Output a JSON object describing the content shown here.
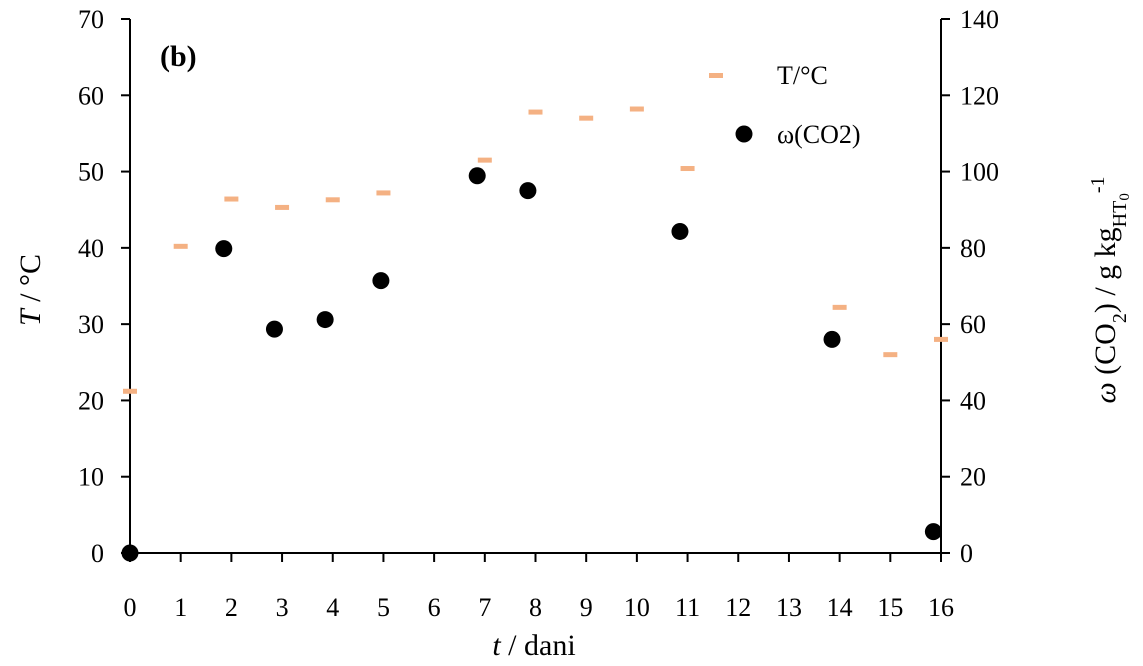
{
  "chart_data": {
    "type": "scatter",
    "panel_label": "(b)",
    "xlabel": {
      "italic": "t",
      "rest": " / dani"
    },
    "ylabel_left": {
      "italic": "T",
      "rest": " / °C"
    },
    "ylabel_right": {
      "omega": "ω",
      "co": " (CO",
      "co_sub": "2",
      "mid": ") / g kg",
      "hw_sub": "HT",
      "zero_sub": "0",
      "sup": "-1"
    },
    "x_ticks": [
      "0",
      "1",
      "2",
      "3",
      "4",
      "5",
      "6",
      "7",
      "8",
      "9",
      "10",
      "11",
      "12",
      "13",
      "14",
      "15",
      "16"
    ],
    "y_left_ticks": [
      "0",
      "10",
      "20",
      "30",
      "40",
      "50",
      "60",
      "70"
    ],
    "y_right_ticks": [
      "0",
      "20",
      "40",
      "60",
      "80",
      "100",
      "120",
      "140"
    ],
    "xlim": [
      0,
      16
    ],
    "ylim_left": [
      0,
      70
    ],
    "ylim_right": [
      0,
      140
    ],
    "legend_position": "top-right",
    "series": [
      {
        "name": "T/°C",
        "axis": "left",
        "marker": "dash",
        "color": "#F4B183",
        "points": [
          [
            0,
            21.2
          ],
          [
            1,
            40.2
          ],
          [
            2,
            46.4
          ],
          [
            3,
            45.3
          ],
          [
            4,
            46.3
          ],
          [
            5,
            47.2
          ],
          [
            7,
            51.5
          ],
          [
            8,
            57.8
          ],
          [
            9,
            57.0
          ],
          [
            10,
            58.2
          ],
          [
            11,
            50.4
          ],
          [
            14,
            32.2
          ],
          [
            15,
            26.0
          ],
          [
            16,
            28.0
          ]
        ]
      },
      {
        "name": "ω(CO2)",
        "axis": "right",
        "marker": "circle",
        "color": "#000000",
        "points": [
          [
            0,
            0.0
          ],
          [
            1.85,
            79.8
          ],
          [
            2.85,
            58.7
          ],
          [
            3.85,
            61.2
          ],
          [
            4.95,
            71.4
          ],
          [
            6.85,
            98.9
          ],
          [
            7.85,
            95.0
          ],
          [
            10.85,
            84.3
          ],
          [
            13.85,
            56.0
          ],
          [
            15.85,
            5.6
          ]
        ]
      }
    ]
  }
}
